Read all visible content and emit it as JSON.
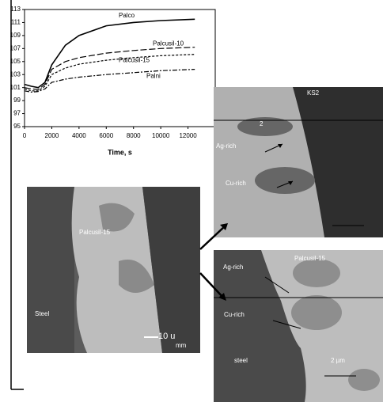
{
  "chart_data": {
    "type": "line",
    "x_label": "Time, s",
    "x": [
      0,
      500,
      1000,
      1500,
      2000,
      3000,
      4000,
      6000,
      8000,
      10000,
      12500
    ],
    "series": [
      {
        "name": "Palco",
        "color": "#000000",
        "dash": "",
        "values": [
          101.5,
          101.2,
          101,
          101.8,
          104.5,
          107.5,
          109,
          110.5,
          111,
          111.3,
          111.5
        ]
      },
      {
        "name": "Palcusil-10",
        "color": "#000000",
        "dash": "8 3",
        "values": [
          101,
          100.8,
          100.7,
          101.5,
          103.8,
          105,
          105.6,
          106.3,
          106.7,
          107,
          107.2
        ]
      },
      {
        "name": "Palcusil-15",
        "color": "#000000",
        "dash": "3 2",
        "values": [
          100.8,
          100.5,
          100.5,
          101.2,
          103,
          104,
          104.6,
          105.2,
          105.6,
          105.9,
          106.1
        ]
      },
      {
        "name": "Palni",
        "color": "#000000",
        "dash": "6 2 2 2",
        "values": [
          100.5,
          100.3,
          100.4,
          100.8,
          101.8,
          102.3,
          102.6,
          103,
          103.3,
          103.6,
          103.8
        ]
      }
    ],
    "xlim": [
      0,
      14000
    ],
    "xticks": [
      0,
      2000,
      4000,
      6000,
      8000,
      10000,
      12000
    ],
    "ylim": [
      95,
      113
    ],
    "yticks": [
      95,
      97,
      99,
      101,
      103,
      105,
      107,
      109,
      111,
      113
    ]
  },
  "images": {
    "left": {
      "labels": [
        "Palcusil-15",
        "Steel",
        "10 u",
        "mm"
      ]
    },
    "top_right": {
      "labels": [
        "Ag-rich",
        "Cu-rich",
        "2",
        "KS2"
      ]
    },
    "bottom_right": {
      "labels": [
        "Palcusil-15",
        "Ag-rich",
        "Cu-rich",
        "steel",
        "2 µm"
      ]
    }
  }
}
